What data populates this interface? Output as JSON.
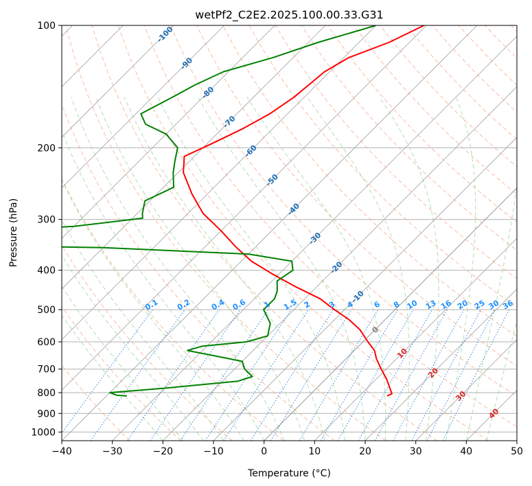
{
  "chart_data": {
    "type": "line",
    "title": "wetPf2_C2E2.2025.100.00.33.G31",
    "xlabel": "Temperature (°C)",
    "ylabel": "Pressure (hPa)",
    "xlim": [
      -40,
      50
    ],
    "ylim": [
      1050,
      100
    ],
    "y_scale": "log",
    "grid": true,
    "x_ticks": [
      -40,
      -30,
      -20,
      -10,
      0,
      10,
      20,
      30,
      40,
      50
    ],
    "x_tick_labels": [
      "−40",
      "−30",
      "−20",
      "−10",
      "0",
      "10",
      "20",
      "30",
      "40",
      "50"
    ],
    "y_ticks": [
      100,
      200,
      300,
      400,
      500,
      600,
      700,
      800,
      900,
      1000
    ],
    "y_tick_labels": [
      "100",
      "200",
      "300",
      "400",
      "500",
      "600",
      "700",
      "800",
      "900",
      "1000"
    ],
    "colors": {
      "temperature": "#ff0000",
      "dewpoint": "#008000",
      "grid": "#b0b0b0",
      "isotherm": "#a0a0a0",
      "dry_adiabat": "#f4a582",
      "moist_adiabat": "#91cf91",
      "mixing_ratio": "#1f78d8",
      "zero_isotherm": "#808080",
      "label_neg": "#1f6fb4",
      "label_mix": "#1e90ff",
      "label_pos": "#d62728"
    },
    "isotherm_labels": [
      {
        "t": -100,
        "label": "-100"
      },
      {
        "t": -90,
        "label": "-90"
      },
      {
        "t": -80,
        "label": "-80"
      },
      {
        "t": -70,
        "label": "-70"
      },
      {
        "t": -60,
        "label": "-60"
      },
      {
        "t": -50,
        "label": "-50"
      },
      {
        "t": -40,
        "label": "-40"
      },
      {
        "t": -30,
        "label": "-30"
      },
      {
        "t": -20,
        "label": "-20"
      },
      {
        "t": -10,
        "label": "-10"
      },
      {
        "t": 0,
        "label": "0"
      },
      {
        "t": 10,
        "label": "10"
      },
      {
        "t": 20,
        "label": "20"
      },
      {
        "t": 30,
        "label": "30"
      },
      {
        "t": 40,
        "label": "40"
      }
    ],
    "mixing_ratio_labels": [
      "0.1",
      "0.2",
      "0.4",
      "0.6",
      "1",
      "1.5",
      "2",
      "3",
      "4",
      "6",
      "8",
      "10",
      "13",
      "16",
      "20",
      "25",
      "30",
      "36"
    ],
    "mixing_ratio_values": [
      0.1,
      0.2,
      0.4,
      0.6,
      1,
      1.5,
      2,
      3,
      4,
      6,
      8,
      10,
      13,
      16,
      20,
      25,
      30,
      36
    ],
    "series": [
      {
        "key": "temperature",
        "points": [
          [
            -50.5,
            100
          ],
          [
            -54,
            110
          ],
          [
            -59,
            120
          ],
          [
            -61,
            130
          ],
          [
            -62,
            150
          ],
          [
            -63.5,
            165
          ],
          [
            -66,
            180
          ],
          [
            -69,
            195
          ],
          [
            -72,
            210
          ],
          [
            -69,
            230
          ],
          [
            -63,
            260
          ],
          [
            -57,
            290
          ],
          [
            -50,
            320
          ],
          [
            -44,
            350
          ],
          [
            -38,
            380
          ],
          [
            -31,
            410
          ],
          [
            -24,
            440
          ],
          [
            -17,
            470
          ],
          [
            -12,
            500
          ],
          [
            -7,
            530
          ],
          [
            -3,
            560
          ],
          [
            1,
            600
          ],
          [
            4,
            630
          ],
          [
            6,
            660
          ],
          [
            9,
            700
          ],
          [
            12,
            740
          ],
          [
            14.5,
            780
          ],
          [
            16,
            805
          ],
          [
            15.5,
            815
          ]
        ]
      },
      {
        "key": "dewpoint",
        "points": [
          [
            -60,
            100
          ],
          [
            -68,
            110
          ],
          [
            -74,
            120
          ],
          [
            -81,
            130
          ],
          [
            -84,
            140
          ],
          [
            -86,
            150
          ],
          [
            -89,
            165
          ],
          [
            -86,
            175
          ],
          [
            -80,
            185
          ],
          [
            -75,
            200
          ],
          [
            -73,
            215
          ],
          [
            -71,
            230
          ],
          [
            -68,
            250
          ],
          [
            -71,
            270
          ],
          [
            -69,
            290
          ],
          [
            -68,
            298
          ],
          [
            -80,
            312
          ],
          [
            -95,
            320
          ],
          [
            -103,
            330
          ],
          [
            -104,
            340
          ],
          [
            -101,
            347
          ],
          [
            -70,
            352
          ],
          [
            -40,
            365
          ],
          [
            -30,
            380
          ],
          [
            -28,
            400
          ],
          [
            -29,
            425
          ],
          [
            -27,
            450
          ],
          [
            -26,
            470
          ],
          [
            -26,
            500
          ],
          [
            -22,
            540
          ],
          [
            -20,
            580
          ],
          [
            -23,
            600
          ],
          [
            -31,
            615
          ],
          [
            -33,
            630
          ],
          [
            -28,
            645
          ],
          [
            -20,
            670
          ],
          [
            -18,
            700
          ],
          [
            -15,
            730
          ],
          [
            -17,
            750
          ],
          [
            -30,
            780
          ],
          [
            -40,
            800
          ],
          [
            -38,
            812
          ],
          [
            -36,
            815
          ]
        ]
      }
    ]
  }
}
